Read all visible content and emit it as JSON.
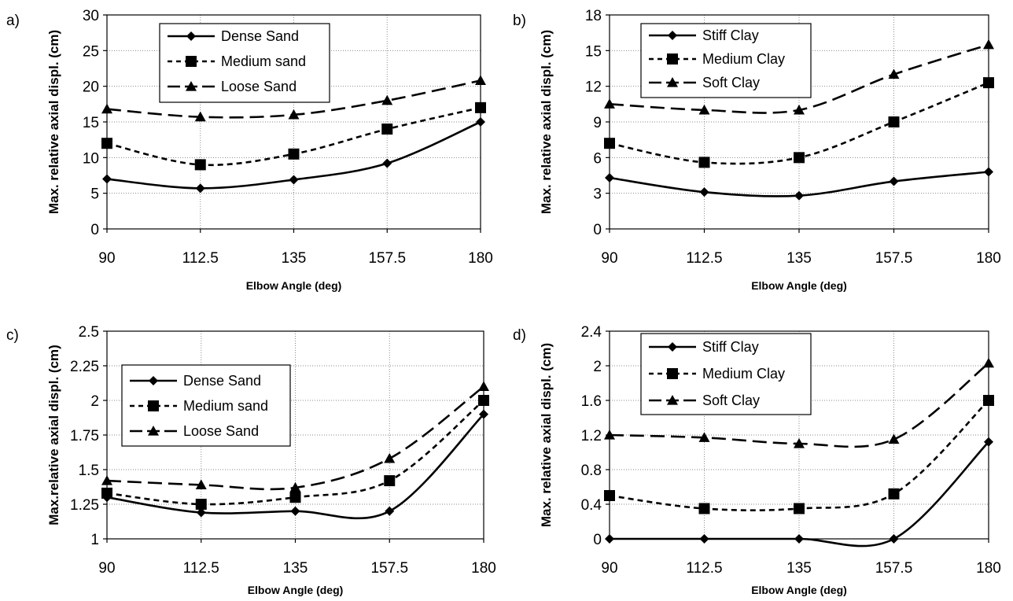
{
  "chart_data": [
    {
      "type": "line",
      "panel_label": "a)",
      "xlabel": "Elbow Angle (deg)",
      "ylabel": "Max. relative axial displ. (cm)",
      "x": [
        90,
        112.5,
        135,
        157.5,
        180
      ],
      "x_ticks": [
        "90",
        "112.5",
        "135",
        "157.5",
        "180"
      ],
      "ylim": [
        0,
        30
      ],
      "y_ticks": [
        "0",
        "5",
        "10",
        "15",
        "20",
        "25",
        "30"
      ],
      "grid": true,
      "legend_position": "top-left",
      "series": [
        {
          "name": "Dense Sand",
          "marker": "diamond",
          "dash": "solid",
          "values": [
            7,
            5.7,
            6.9,
            9.2,
            15
          ]
        },
        {
          "name": "Medium sand",
          "marker": "square",
          "dash": "short-dash",
          "values": [
            12,
            9,
            10.5,
            14,
            17
          ]
        },
        {
          "name": "Loose Sand",
          "marker": "triangle",
          "dash": "long-dash",
          "values": [
            16.8,
            15.7,
            16,
            18,
            20.8
          ]
        }
      ]
    },
    {
      "type": "line",
      "panel_label": "b)",
      "xlabel": "Elbow Angle (deg)",
      "ylabel": "Max. relative axial displ. (cm)",
      "x": [
        90,
        112.5,
        135,
        157.5,
        180
      ],
      "x_ticks": [
        "90",
        "112.5",
        "135",
        "157.5",
        "180"
      ],
      "ylim": [
        0,
        18
      ],
      "y_ticks": [
        "0",
        "3",
        "6",
        "9",
        "12",
        "15",
        "18"
      ],
      "grid": true,
      "legend_position": "top-left",
      "series": [
        {
          "name": "Stiff Clay",
          "marker": "diamond",
          "dash": "solid",
          "values": [
            4.3,
            3.1,
            2.8,
            4,
            4.8
          ]
        },
        {
          "name": "Medium Clay",
          "marker": "square",
          "dash": "short-dash",
          "values": [
            7.2,
            5.6,
            6,
            9,
            12.3
          ]
        },
        {
          "name": "Soft Clay",
          "marker": "triangle",
          "dash": "long-dash",
          "values": [
            10.5,
            10,
            10,
            13,
            15.5
          ]
        }
      ]
    },
    {
      "type": "line",
      "panel_label": "c)",
      "xlabel": "Elbow Angle (deg)",
      "ylabel": "Max.relative axial displ. (cm)",
      "x": [
        90,
        112.5,
        135,
        157.5,
        180
      ],
      "x_ticks": [
        "90",
        "112.5",
        "135",
        "157.5",
        "180"
      ],
      "ylim": [
        1,
        2.5
      ],
      "y_ticks": [
        "1",
        "1.25",
        "1.5",
        "1.75",
        "2",
        "2.25",
        "2.5"
      ],
      "grid": true,
      "legend_position": "middle-left",
      "series": [
        {
          "name": "Dense Sand",
          "marker": "diamond",
          "dash": "solid",
          "values": [
            1.3,
            1.19,
            1.2,
            1.2,
            1.9
          ]
        },
        {
          "name": "Medium sand",
          "marker": "square",
          "dash": "short-dash",
          "values": [
            1.33,
            1.25,
            1.3,
            1.42,
            2
          ]
        },
        {
          "name": "Loose Sand",
          "marker": "triangle",
          "dash": "long-dash",
          "values": [
            1.42,
            1.39,
            1.37,
            1.58,
            2.1
          ]
        }
      ]
    },
    {
      "type": "line",
      "panel_label": "d)",
      "xlabel": "Elbow Angle (deg)",
      "ylabel": "Max. relative axial displ. (cm)",
      "x": [
        90,
        112.5,
        135,
        157.5,
        180
      ],
      "x_ticks": [
        "90",
        "112.5",
        "135",
        "157.5",
        "180"
      ],
      "ylim": [
        0,
        2.4
      ],
      "y_ticks": [
        "0",
        "0.4",
        "0.8",
        "1.2",
        "1.6",
        "2",
        "2.4"
      ],
      "grid": true,
      "legend_position": "top-left",
      "series": [
        {
          "name": "Stiff Clay",
          "marker": "diamond",
          "dash": "solid",
          "values": [
            0,
            0,
            0,
            0,
            1.12
          ]
        },
        {
          "name": "Medium Clay",
          "marker": "square",
          "dash": "short-dash",
          "values": [
            0.5,
            0.35,
            0.35,
            0.52,
            1.6
          ]
        },
        {
          "name": "Soft Clay",
          "marker": "triangle",
          "dash": "long-dash",
          "values": [
            1.2,
            1.17,
            1.1,
            1.15,
            2.03
          ]
        }
      ]
    }
  ]
}
